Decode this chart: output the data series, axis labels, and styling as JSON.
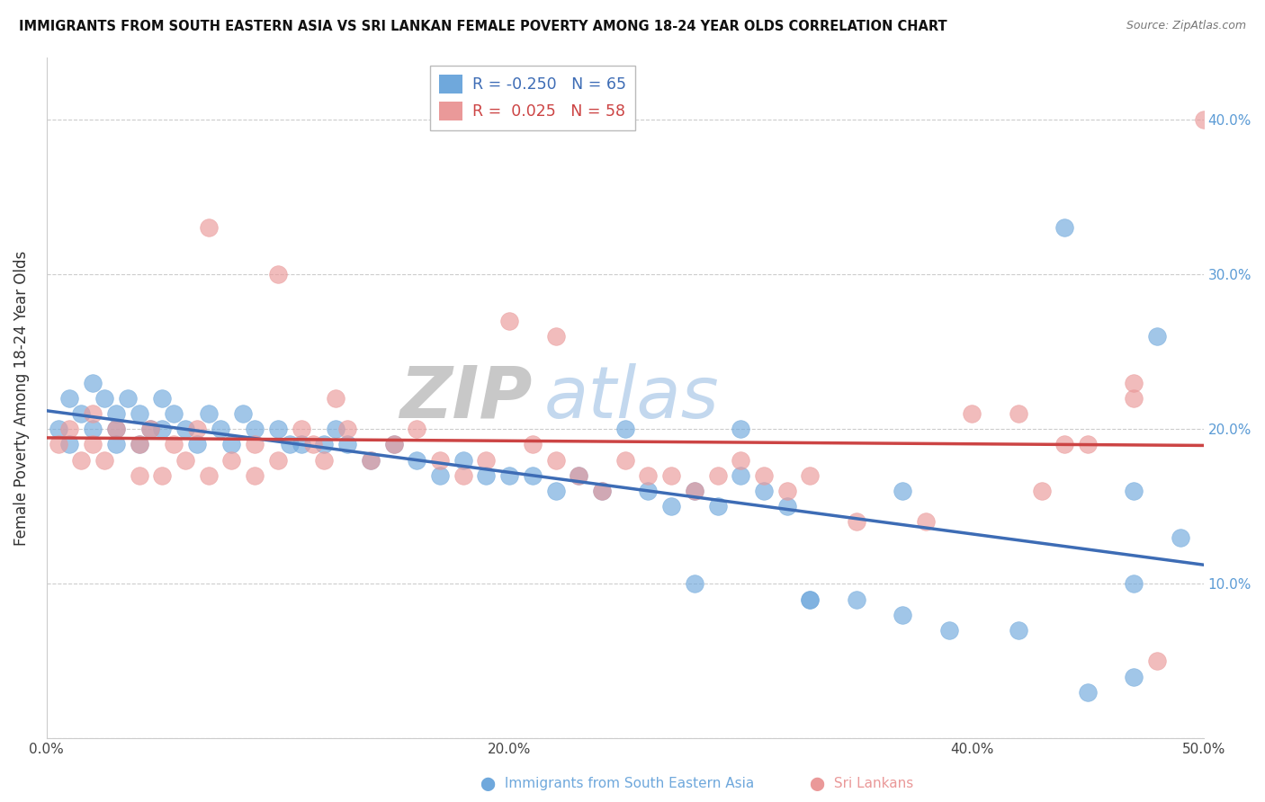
{
  "title": "IMMIGRANTS FROM SOUTH EASTERN ASIA VS SRI LANKAN FEMALE POVERTY AMONG 18-24 YEAR OLDS CORRELATION CHART",
  "source": "Source: ZipAtlas.com",
  "ylabel": "Female Poverty Among 18-24 Year Olds",
  "xlim": [
    0.0,
    0.5
  ],
  "ylim": [
    0.0,
    0.44
  ],
  "xticks": [
    0.0,
    0.1,
    0.2,
    0.3,
    0.4,
    0.5
  ],
  "xticklabels": [
    "0.0%",
    "",
    "20.0%",
    "",
    "40.0%",
    "50.0%"
  ],
  "yticks": [
    0.0,
    0.1,
    0.2,
    0.3,
    0.4
  ],
  "yticklabels_left": [
    "",
    "",
    "",
    "",
    ""
  ],
  "yticklabels_right": [
    "",
    "10.0%",
    "20.0%",
    "30.0%",
    "40.0%"
  ],
  "blue_color": "#6fa8dc",
  "pink_color": "#ea9999",
  "blue_line_color": "#3d6cb5",
  "pink_line_color": "#cc4444",
  "watermark_zip": "ZIP",
  "watermark_atlas": "atlas",
  "legend_R_blue": "-0.250",
  "legend_N_blue": "65",
  "legend_R_pink": "0.025",
  "legend_N_pink": "58",
  "blue_points_x": [
    0.005,
    0.01,
    0.01,
    0.015,
    0.02,
    0.02,
    0.025,
    0.03,
    0.03,
    0.03,
    0.035,
    0.04,
    0.04,
    0.045,
    0.05,
    0.05,
    0.055,
    0.06,
    0.065,
    0.07,
    0.075,
    0.08,
    0.085,
    0.09,
    0.1,
    0.105,
    0.11,
    0.12,
    0.125,
    0.13,
    0.14,
    0.15,
    0.16,
    0.17,
    0.18,
    0.19,
    0.2,
    0.21,
    0.22,
    0.23,
    0.24,
    0.25,
    0.26,
    0.27,
    0.28,
    0.29,
    0.3,
    0.31,
    0.32,
    0.33,
    0.35,
    0.37,
    0.39,
    0.42,
    0.44,
    0.47,
    0.28,
    0.3,
    0.33,
    0.37,
    0.45,
    0.47,
    0.48,
    0.47,
    0.49
  ],
  "blue_points_y": [
    0.2,
    0.22,
    0.19,
    0.21,
    0.23,
    0.2,
    0.22,
    0.21,
    0.19,
    0.2,
    0.22,
    0.21,
    0.19,
    0.2,
    0.22,
    0.2,
    0.21,
    0.2,
    0.19,
    0.21,
    0.2,
    0.19,
    0.21,
    0.2,
    0.2,
    0.19,
    0.19,
    0.19,
    0.2,
    0.19,
    0.18,
    0.19,
    0.18,
    0.17,
    0.18,
    0.17,
    0.17,
    0.17,
    0.16,
    0.17,
    0.16,
    0.2,
    0.16,
    0.15,
    0.16,
    0.15,
    0.17,
    0.16,
    0.15,
    0.09,
    0.09,
    0.08,
    0.07,
    0.07,
    0.33,
    0.1,
    0.1,
    0.2,
    0.09,
    0.16,
    0.03,
    0.04,
    0.26,
    0.16,
    0.13
  ],
  "pink_points_x": [
    0.005,
    0.01,
    0.015,
    0.02,
    0.02,
    0.025,
    0.03,
    0.04,
    0.04,
    0.045,
    0.05,
    0.055,
    0.06,
    0.065,
    0.07,
    0.08,
    0.09,
    0.09,
    0.1,
    0.11,
    0.115,
    0.12,
    0.125,
    0.13,
    0.14,
    0.15,
    0.16,
    0.17,
    0.18,
    0.19,
    0.2,
    0.21,
    0.22,
    0.23,
    0.24,
    0.25,
    0.26,
    0.27,
    0.28,
    0.29,
    0.3,
    0.31,
    0.32,
    0.33,
    0.35,
    0.38,
    0.4,
    0.43,
    0.45,
    0.47,
    0.1,
    0.22,
    0.42,
    0.44,
    0.47,
    0.48,
    0.5,
    0.07
  ],
  "pink_points_y": [
    0.19,
    0.2,
    0.18,
    0.19,
    0.21,
    0.18,
    0.2,
    0.19,
    0.17,
    0.2,
    0.17,
    0.19,
    0.18,
    0.2,
    0.17,
    0.18,
    0.19,
    0.17,
    0.18,
    0.2,
    0.19,
    0.18,
    0.22,
    0.2,
    0.18,
    0.19,
    0.2,
    0.18,
    0.17,
    0.18,
    0.27,
    0.19,
    0.18,
    0.17,
    0.16,
    0.18,
    0.17,
    0.17,
    0.16,
    0.17,
    0.18,
    0.17,
    0.16,
    0.17,
    0.14,
    0.14,
    0.21,
    0.16,
    0.19,
    0.22,
    0.3,
    0.26,
    0.21,
    0.19,
    0.23,
    0.05,
    0.4,
    0.33
  ]
}
